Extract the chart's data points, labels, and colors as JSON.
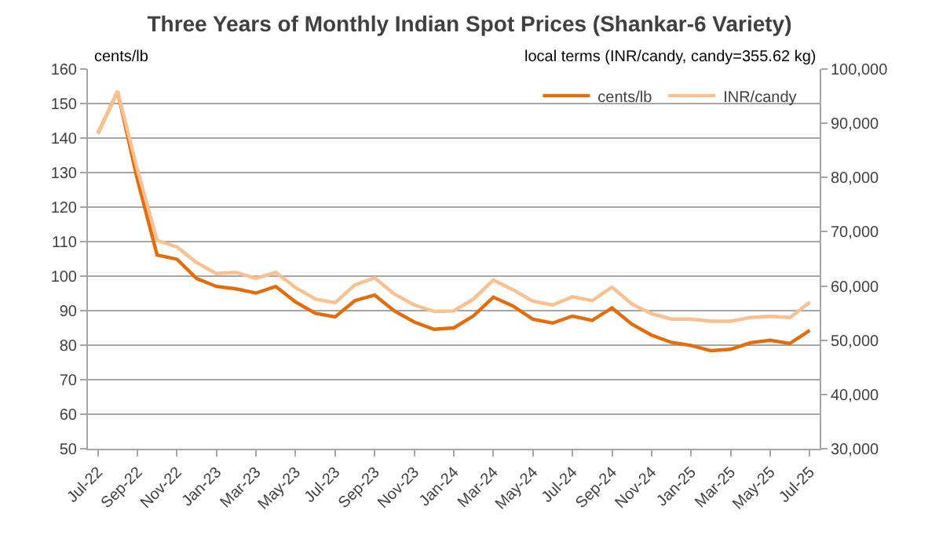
{
  "chart_data": {
    "type": "line",
    "title": "Three Years of Monthly Indian Spot Prices (Shankar-6 Variety)",
    "ylabel": "cents/lb",
    "y2label": "local terms (INR/candy, candy=355.62 kg)",
    "categories": [
      "Jul-22",
      null,
      "Sep-22",
      null,
      "Nov-22",
      null,
      "Jan-23",
      null,
      "Mar-23",
      null,
      "May-23",
      null,
      "Jul-23",
      null,
      "Sep-23",
      null,
      "Nov-23",
      null,
      "Jan-24",
      null,
      "Mar-24",
      null,
      "May-24",
      null,
      "Jul-24",
      null,
      "Sep-24",
      null,
      "Nov-24",
      null,
      "Jan-25",
      null,
      "Mar-25",
      null,
      "May-25",
      null,
      "Jul-25"
    ],
    "series": [
      {
        "name": "cents/lb",
        "color": "#e46c0a",
        "values": [
          141.3,
          153.5,
          128,
          106.1,
          104.9,
          99.3,
          97.0,
          96.3,
          95.1,
          97.0,
          92.5,
          89.2,
          88.2,
          92.9,
          94.5,
          89.9,
          86.7,
          84.6,
          85.0,
          88.5,
          93.9,
          91.3,
          87.5,
          86.4,
          88.4,
          87.2,
          90.8,
          86.1,
          82.9,
          80.8,
          79.9,
          78.4,
          78.8,
          80.7,
          81.4,
          80.5,
          84.3
        ]
      },
      {
        "name": "INR/candy",
        "color": "#fac090",
        "axis": "y2",
        "values": [
          88100,
          95900,
          81500,
          68400,
          67200,
          64300,
          62300,
          62500,
          61400,
          62500,
          59700,
          57600,
          56900,
          60200,
          61500,
          58500,
          56500,
          55300,
          55400,
          57600,
          61100,
          59300,
          57200,
          56500,
          58000,
          57300,
          59800,
          56700,
          54900,
          53900,
          53900,
          53500,
          53500,
          54200,
          54400,
          54200,
          57000
        ]
      }
    ],
    "ylim": [
      50,
      160
    ],
    "yticks": [
      50,
      60,
      70,
      80,
      90,
      100,
      110,
      120,
      130,
      140,
      150,
      160
    ],
    "y2lim": [
      30000,
      100000
    ],
    "y2ticks": [
      {
        "value": 30000,
        "label": "30,000"
      },
      {
        "value": 40000,
        "label": "40,000"
      },
      {
        "value": 50000,
        "label": "50,000"
      },
      {
        "value": 60000,
        "label": "60,000"
      },
      {
        "value": 70000,
        "label": "70,000"
      },
      {
        "value": 80000,
        "label": "80,000"
      },
      {
        "value": 90000,
        "label": "90,000"
      },
      {
        "value": 100000,
        "label": "100,000"
      }
    ],
    "grid": "y",
    "legend": "top right",
    "line_style": "solid",
    "marker": "none"
  }
}
